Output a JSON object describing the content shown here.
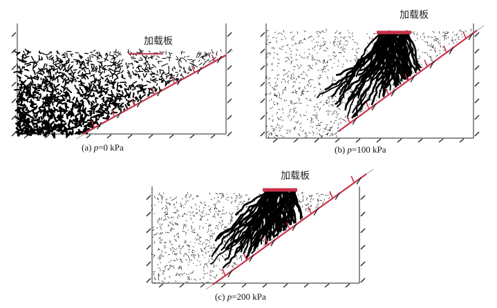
{
  "panels": [
    {
      "id": "a",
      "plate_label": "加载板",
      "caption_prefix": "(a) ",
      "caption_var": "p",
      "caption_suffix": "=0 kPa"
    },
    {
      "id": "b",
      "plate_label": "加载板",
      "caption_prefix": "(b) ",
      "caption_var": "p",
      "caption_suffix": "=100 kPa"
    },
    {
      "id": "c",
      "plate_label": "加载板",
      "caption_prefix": "(c) ",
      "caption_var": "p",
      "caption_suffix": "=200 kPa"
    }
  ],
  "colors": {
    "anchor": "#c8334a",
    "plate": "#c8334a",
    "frame": "#222222",
    "force_chain": "#000000",
    "slope_line": "#9a9a9a"
  }
}
